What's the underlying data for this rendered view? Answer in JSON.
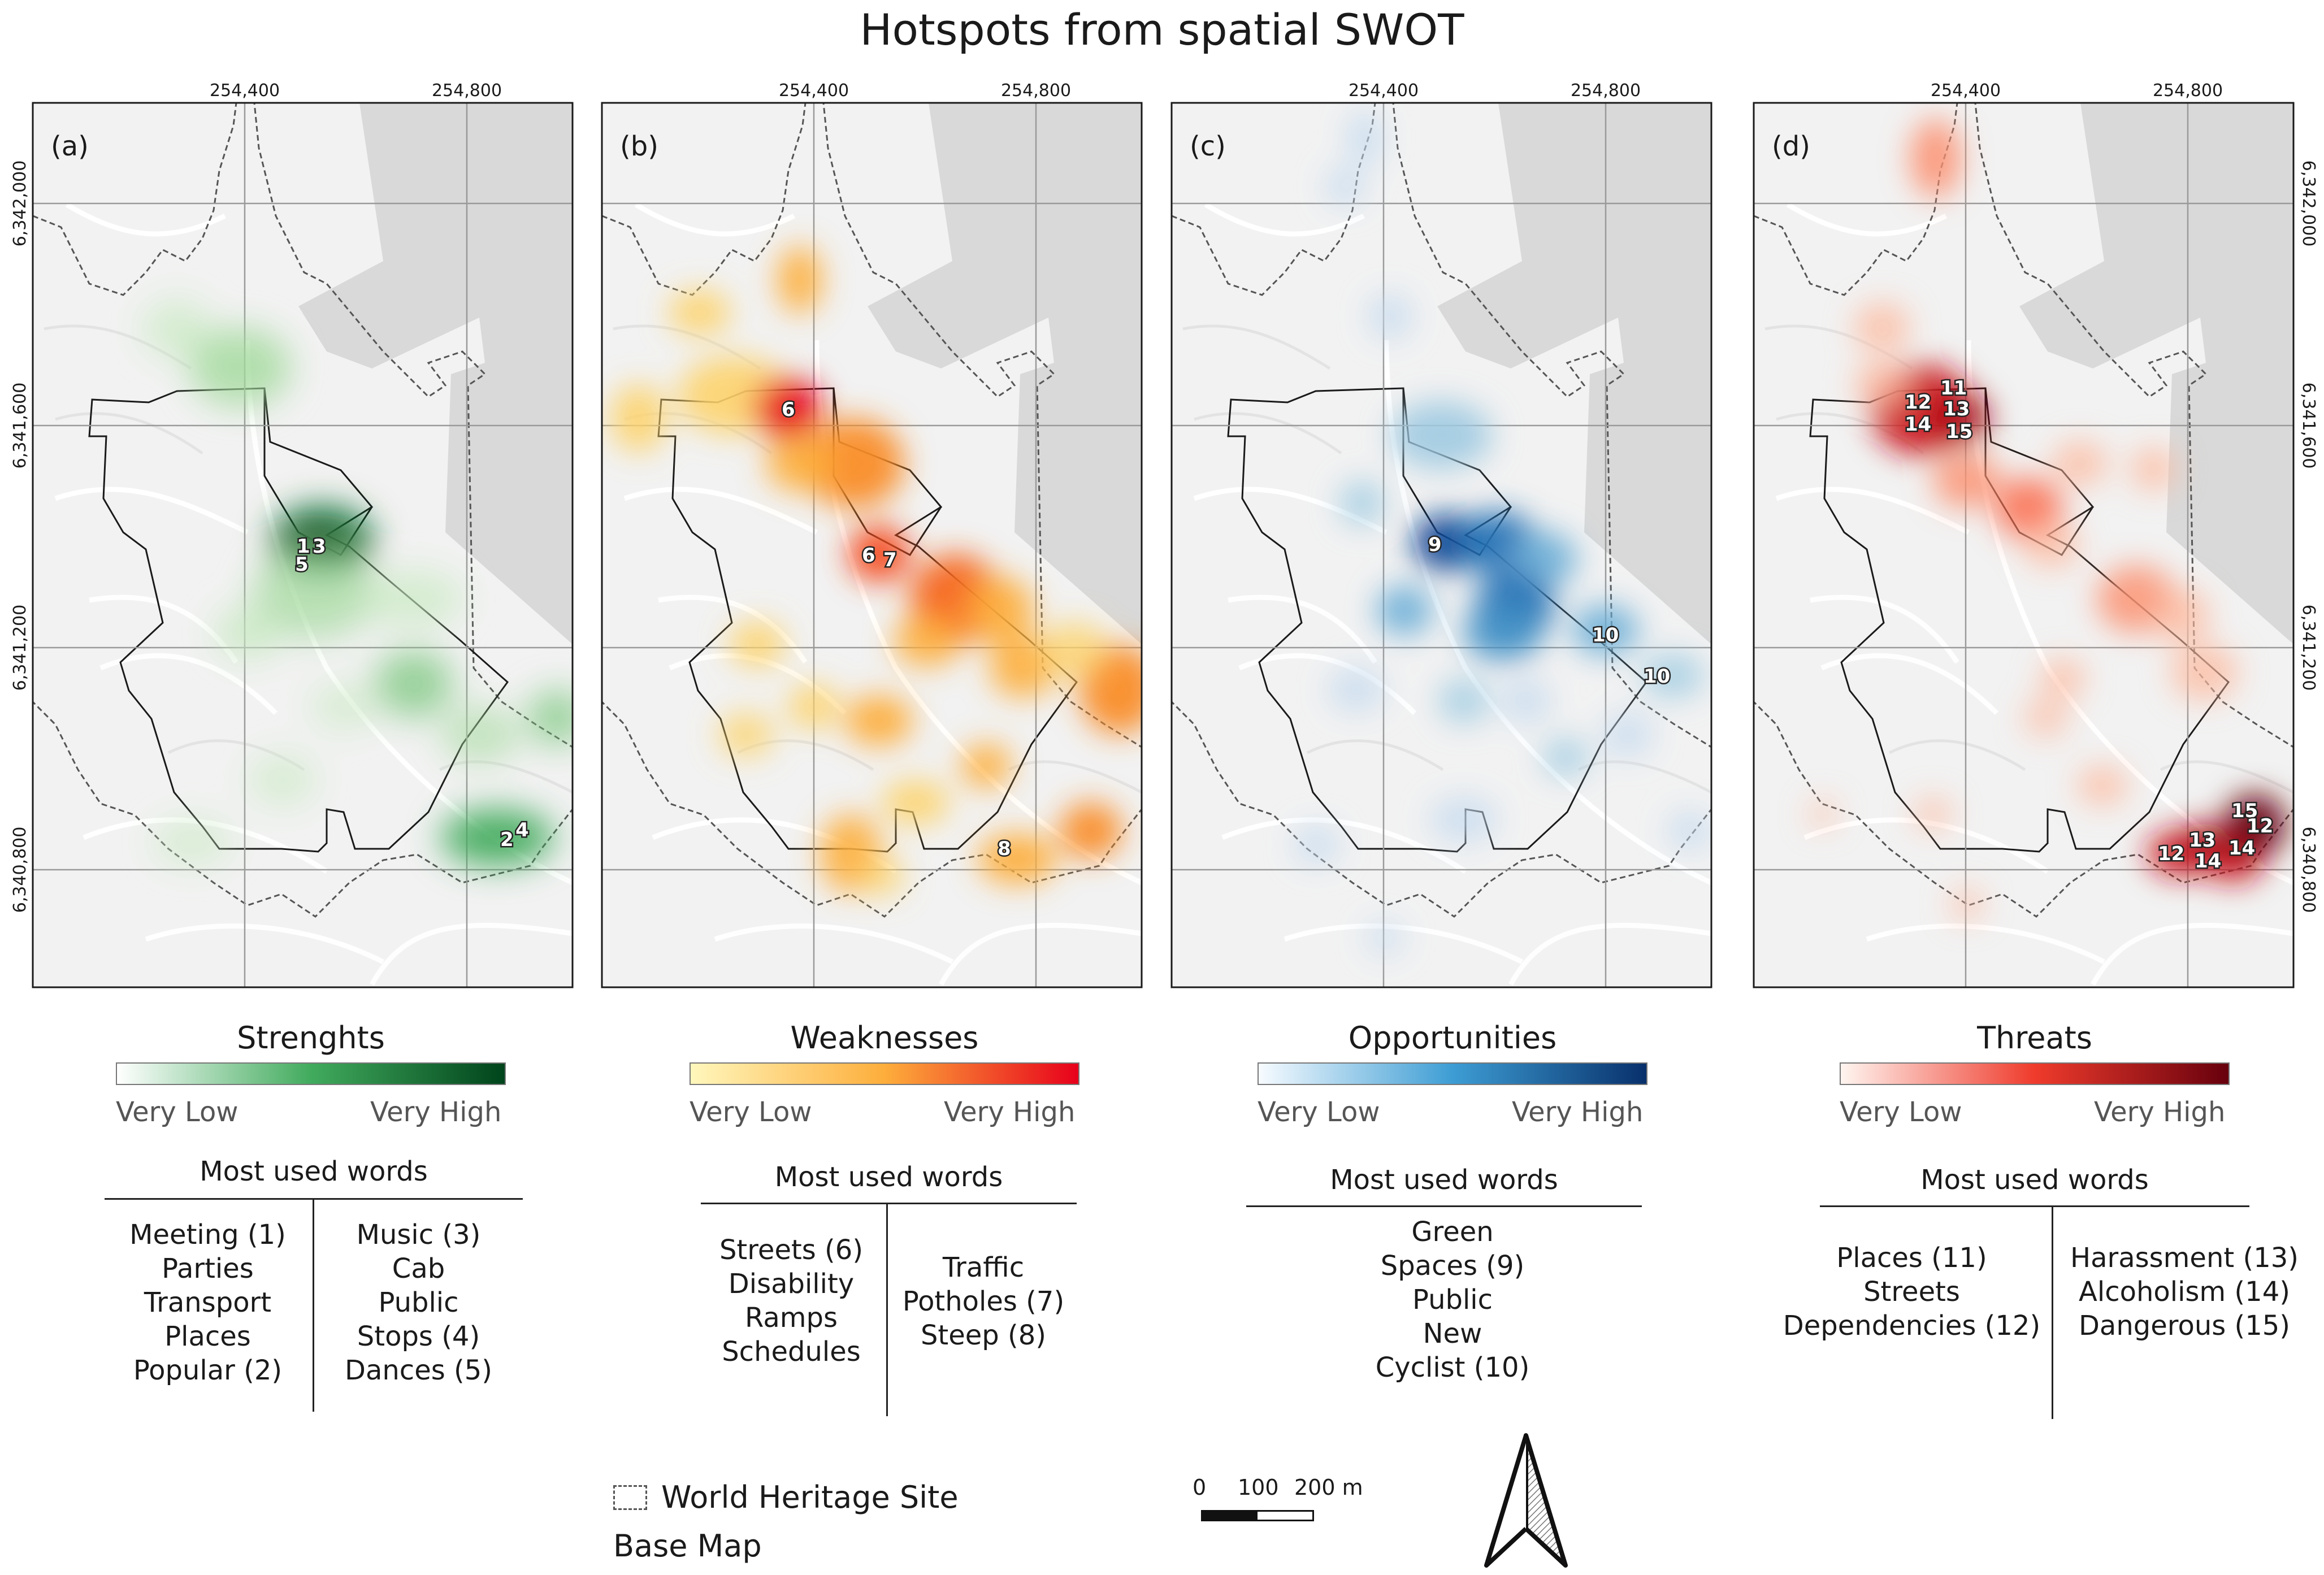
{
  "title": "Hotspots from spatial SWOT",
  "map_axes": {
    "x_ticks": [
      "254,400",
      "254,800"
    ],
    "y_ticks": [
      "6,342,000",
      "6,341,600",
      "6,341,200",
      "6,340,800"
    ]
  },
  "panels": [
    {
      "id": "a",
      "panel_label": "(a)",
      "legend_title": "Strenghts",
      "low_label": "Very Low",
      "high_label": "Very High",
      "colors": [
        "#ffffff",
        "#41ab5d",
        "#00441b"
      ],
      "words_title": "Most used words",
      "words_left": [
        "Meeting (1)",
        "Parties",
        "Transport",
        "Places",
        "Popular (2)"
      ],
      "words_right": [
        "Music (3)",
        "Cab",
        "Public",
        "Stops (4)",
        "Dances (5)"
      ],
      "markers": [
        "1",
        "3",
        "5",
        "2",
        "4"
      ]
    },
    {
      "id": "b",
      "panel_label": "(b)",
      "legend_title": "Weaknesses",
      "low_label": "Very Low",
      "high_label": "Very High",
      "colors": [
        "#fff7bc",
        "#fdae3b",
        "#e7001b"
      ],
      "words_title": "Most used words",
      "words_left": [
        "Streets (6)",
        "Disability",
        "Ramps",
        "Schedules"
      ],
      "words_right": [
        "Traffic",
        "Potholes (7)",
        "Steep (8)"
      ],
      "markers": [
        "6",
        "6",
        "7",
        "8"
      ]
    },
    {
      "id": "c",
      "panel_label": "(c)",
      "legend_title": "Opportunities",
      "low_label": "Very Low",
      "high_label": "Very High",
      "colors": [
        "#f7fbff",
        "#3d9dd4",
        "#08306b"
      ],
      "words_title": "Most used words",
      "words_left": [
        "Green",
        "Spaces (9)",
        "Public",
        "New",
        "Cyclist (10)"
      ],
      "words_right": [],
      "markers": [
        "9",
        "10",
        "10"
      ]
    },
    {
      "id": "d",
      "panel_label": "(d)",
      "legend_title": "Threats",
      "low_label": "Very Low",
      "high_label": "Very High",
      "colors": [
        "#fff5f0",
        "#ef3b2c",
        "#67000d"
      ],
      "words_title": "Most used words",
      "words_left": [
        "Places (11)",
        "Streets",
        "Dependencies (12)"
      ],
      "words_right": [
        "Harassment (13)",
        "Alcoholism (14)",
        "Dangerous (15)"
      ],
      "markers": [
        "11",
        "12",
        "13",
        "14",
        "15",
        "15",
        "12",
        "13",
        "12",
        "14",
        "14"
      ]
    }
  ],
  "legend": {
    "heritage_label": "World Heritage Site",
    "basemap_label": "Base Map",
    "scale_labels": [
      "0",
      "100",
      "200 m"
    ]
  }
}
